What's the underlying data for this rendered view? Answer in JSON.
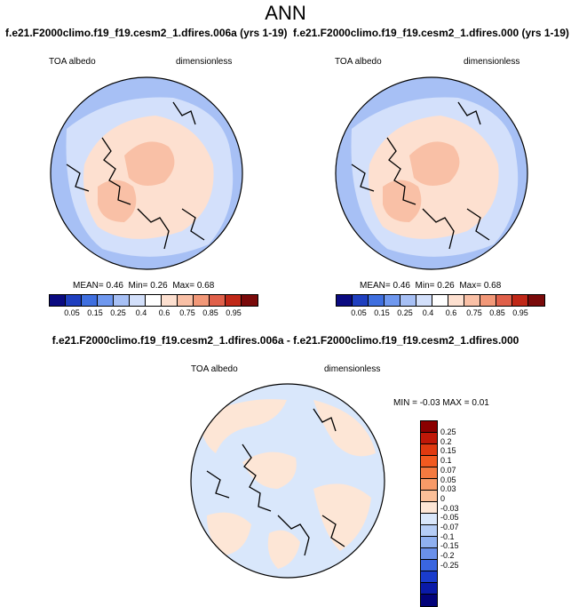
{
  "title": "ANN",
  "panels": [
    {
      "case_title": "f.e21.F2000climo.f19_f19.cesm2_1.dfires.006a (yrs 1-19)",
      "left_label": "TOA albedo",
      "right_label": "dimensionless",
      "stats": {
        "mean_label": "MEAN=",
        "mean": "0.46",
        "min_label": "Min=",
        "min": "0.26",
        "max_label": "Max=",
        "max": "0.68"
      }
    },
    {
      "case_title": "f.e21.F2000climo.f19_f19.cesm2_1.dfires.000 (yrs 1-19)",
      "left_label": "TOA albedo",
      "right_label": "dimensionless",
      "stats": {
        "mean_label": "MEAN=",
        "mean": "0.46",
        "min_label": "Min=",
        "min": "0.26",
        "max_label": "Max=",
        "max": "0.68"
      }
    }
  ],
  "diff_panel": {
    "title": "f.e21.F2000climo.f19_f19.cesm2_1.dfires.006a - f.e21.F2000climo.f19_f19.cesm2_1.dfires.000",
    "left_label": "TOA albedo",
    "right_label": "dimensionless",
    "stats_text": "MIN =  -0.03 MAX =   0.01"
  },
  "colorbar_main": {
    "levels": [
      "0.05",
      "0.15",
      "0.25",
      "0.4",
      "0.6",
      "0.75",
      "0.85",
      "0.95"
    ],
    "colors": [
      "#0a0a80",
      "#1f3fbf",
      "#3f6fdf",
      "#6f98ef",
      "#a7c0f5",
      "#d3e0fb",
      "#ffffff",
      "#fde0d0",
      "#f9c0a6",
      "#f29878",
      "#e0604a",
      "#c02818",
      "#7a0a0a"
    ]
  },
  "colorbar_diff": {
    "levels": [
      "0.25",
      "0.2",
      "0.15",
      "0.1",
      "0.07",
      "0.05",
      "0.03",
      "0",
      "-0.03",
      "-0.05",
      "-0.07",
      "-0.1",
      "-0.15",
      "-0.2",
      "-0.25"
    ],
    "colors": [
      "#8b0000",
      "#c01808",
      "#e03a10",
      "#f25a20",
      "#f57a40",
      "#f89a68",
      "#fbbf98",
      "#fde6d6",
      "#d9e7fb",
      "#b5cdf6",
      "#8fb0f0",
      "#6a90ea",
      "#3a66e0",
      "#1a3ccc",
      "#0a1aa8",
      "#03037a"
    ]
  }
}
